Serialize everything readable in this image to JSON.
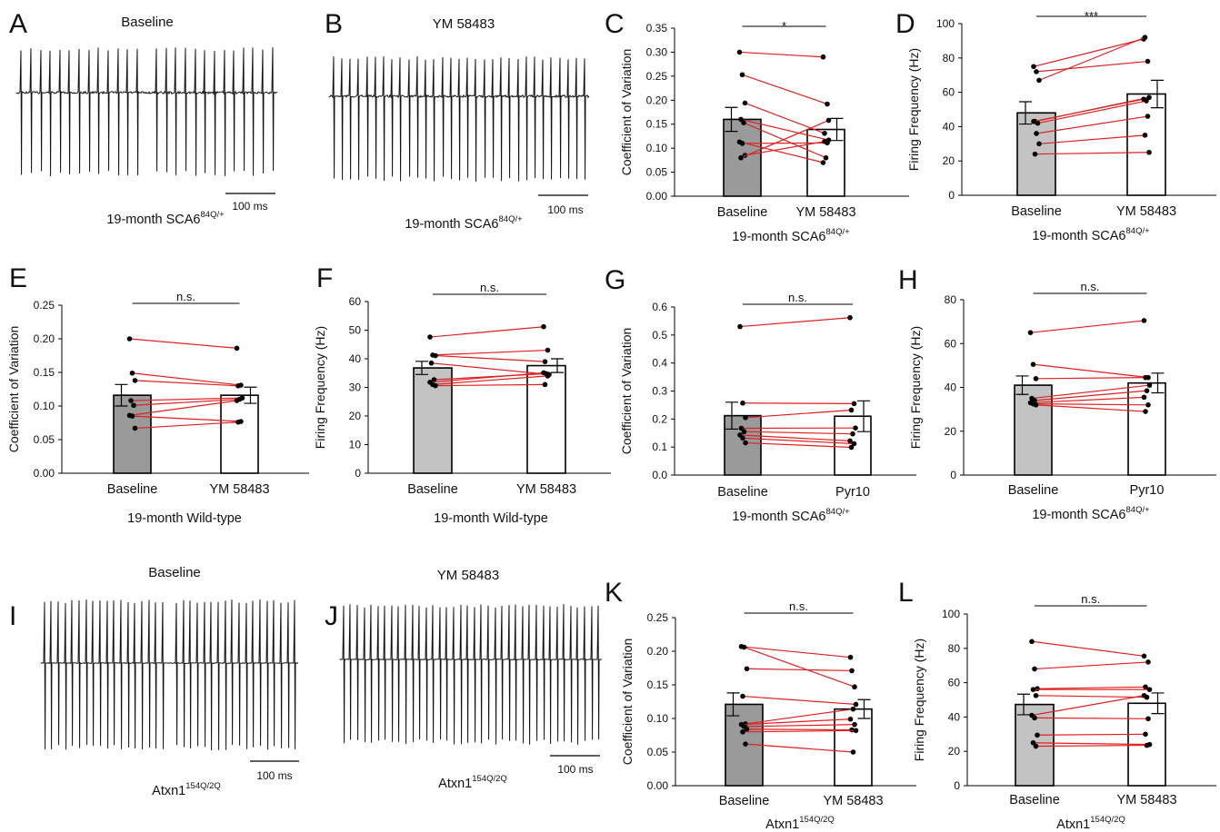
{
  "colors": {
    "trace": "#111111",
    "pair_line": "#e02020",
    "dot": "#000000",
    "bar_dark": "#9a9a9a",
    "bar_light": "#c3c3c3",
    "bar_treated": "#ffffff"
  },
  "traces": [
    {
      "letter": "A",
      "title": "Baseline",
      "scale_label": "100 ms",
      "caption": "19-month SCA6",
      "caption_sup": "84Q/+"
    },
    {
      "letter": "B",
      "title": "YM 58483",
      "scale_label": "100 ms",
      "caption": "19-month SCA6",
      "caption_sup": "84Q/+"
    },
    {
      "letter": "I",
      "title": "Baseline",
      "scale_label": "100 ms",
      "caption": "Atxn1",
      "caption_sup": "154Q/2Q"
    },
    {
      "letter": "J",
      "title": "YM 58483",
      "scale_label": "100 ms",
      "caption": "Atxn1",
      "caption_sup": "154Q/2Q"
    }
  ],
  "chart_data": [
    {
      "letter": "C",
      "type": "bar",
      "categories": [
        "Baseline",
        "YM 58483"
      ],
      "ylabel": "Coefficient of Variation",
      "ylim": [
        0,
        0.35
      ],
      "yticks": [
        "0.00",
        "0.05",
        "0.10",
        "0.15",
        "0.20",
        "0.25",
        "0.30",
        "0.35"
      ],
      "caption": "19-month SCA6",
      "caption_sup": "84Q/+",
      "significance": "*",
      "baseline_shade": "dark",
      "means": [
        0.16,
        0.139
      ],
      "sem": [
        0.025,
        0.023
      ],
      "pairs": [
        [
          0.3,
          0.29
        ],
        [
          0.253,
          0.192
        ],
        [
          0.194,
          0.131
        ],
        [
          0.16,
          0.117
        ],
        [
          0.153,
          0.08
        ],
        [
          0.113,
          0.07
        ],
        [
          0.11,
          0.111
        ],
        [
          0.085,
          0.114
        ],
        [
          0.08,
          0.158
        ]
      ]
    },
    {
      "letter": "D",
      "type": "bar",
      "categories": [
        "Baseline",
        "YM 58483"
      ],
      "ylabel": "Firing Frequency (Hz)",
      "ylim": [
        0,
        100
      ],
      "yticks": [
        "0",
        "20",
        "40",
        "60",
        "80",
        "100"
      ],
      "caption": "19-month SCA6",
      "caption_sup": "84Q/+",
      "significance": "***",
      "baseline_shade": "light",
      "means": [
        48,
        59
      ],
      "sem": [
        6.5,
        8
      ],
      "pairs": [
        [
          75,
          91
        ],
        [
          72,
          78
        ],
        [
          67,
          92
        ],
        [
          43,
          57
        ],
        [
          42,
          55
        ],
        [
          43,
          56
        ],
        [
          36,
          46
        ],
        [
          30,
          35
        ],
        [
          24,
          25
        ]
      ]
    },
    {
      "letter": "E",
      "type": "bar",
      "categories": [
        "Baseline",
        "YM 58483"
      ],
      "ylabel": "Coefficient of Variation",
      "ylim": [
        0,
        0.25
      ],
      "yticks": [
        "0.00",
        "0.05",
        "0.10",
        "0.15",
        "0.20",
        "0.25"
      ],
      "caption": "19-month Wild-type",
      "caption_sup": "",
      "significance": "n.s.",
      "baseline_shade": "dark",
      "means": [
        0.116,
        0.116
      ],
      "sem": [
        0.016,
        0.012
      ],
      "pairs": [
        [
          0.2,
          0.186
        ],
        [
          0.149,
          0.131
        ],
        [
          0.138,
          0.13
        ],
        [
          0.108,
          0.112
        ],
        [
          0.101,
          0.11
        ],
        [
          0.086,
          0.108
        ],
        [
          0.085,
          0.077
        ],
        [
          0.067,
          0.076
        ]
      ]
    },
    {
      "letter": "F",
      "type": "bar",
      "categories": [
        "Baseline",
        "YM 58483"
      ],
      "ylabel": "Firing Frequency (Hz)",
      "ylim": [
        0,
        60
      ],
      "yticks": [
        "0",
        "10",
        "20",
        "30",
        "40",
        "50",
        "60"
      ],
      "caption": "19-month Wild-type",
      "caption_sup": "",
      "significance": "n.s.",
      "baseline_shade": "light",
      "means": [
        36.8,
        37.6
      ],
      "sem": [
        2.3,
        2.4
      ],
      "pairs": [
        [
          47.6,
          51.2
        ],
        [
          41.3,
          43
        ],
        [
          41.1,
          39
        ],
        [
          38.5,
          34.5
        ],
        [
          32.7,
          34.8
        ],
        [
          31.8,
          35.1
        ],
        [
          31,
          34
        ],
        [
          30.6,
          31
        ]
      ]
    },
    {
      "letter": "G",
      "type": "bar",
      "categories": [
        "Baseline",
        "Pyr10"
      ],
      "ylabel": "Coefficient of Variation",
      "ylim": [
        0,
        0.6
      ],
      "yticks": [
        "0.0",
        "0.1",
        "0.2",
        "0.3",
        "0.4",
        "0.5",
        "0.6"
      ],
      "caption": "19-month SCA6",
      "caption_sup": "84Q/+",
      "significance": "n.s.",
      "baseline_shade": "dark",
      "means": [
        0.212,
        0.21
      ],
      "sem": [
        0.048,
        0.055
      ],
      "pairs": [
        [
          0.53,
          0.562
        ],
        [
          0.257,
          0.255
        ],
        [
          0.205,
          0.232
        ],
        [
          0.167,
          0.168
        ],
        [
          0.155,
          0.147
        ],
        [
          0.143,
          0.122
        ],
        [
          0.132,
          0.112
        ],
        [
          0.115,
          0.099
        ]
      ]
    },
    {
      "letter": "H",
      "type": "bar",
      "categories": [
        "Baseline",
        "Pyr10"
      ],
      "ylabel": "Firing Frequency (Hz)",
      "ylim": [
        0,
        80
      ],
      "yticks": [
        "0",
        "20",
        "40",
        "60",
        "80"
      ],
      "caption": "19-month SCA6",
      "caption_sup": "84Q/+",
      "significance": "n.s.",
      "baseline_shade": "light",
      "means": [
        41,
        42
      ],
      "sem": [
        4.2,
        4.5
      ],
      "pairs": [
        [
          65,
          70.5
        ],
        [
          50.5,
          44.5
        ],
        [
          44,
          44.5
        ],
        [
          35,
          41
        ],
        [
          34,
          38.5
        ],
        [
          33,
          35.5
        ],
        [
          32.5,
          32
        ],
        [
          32,
          29
        ]
      ]
    },
    {
      "letter": "K",
      "type": "bar",
      "categories": [
        "Baseline",
        "YM 58483"
      ],
      "ylabel": "Coefficient of Variation",
      "ylim": [
        0,
        0.25
      ],
      "yticks": [
        "0.00",
        "0.05",
        "0.10",
        "0.15",
        "0.20",
        "0.25"
      ],
      "caption": "Atxn1",
      "caption_sup": "154Q/2Q",
      "significance": "n.s.",
      "baseline_shade": "dark",
      "means": [
        0.121,
        0.114
      ],
      "sem": [
        0.017,
        0.014
      ],
      "pairs": [
        [
          0.207,
          0.191
        ],
        [
          0.206,
          0.147
        ],
        [
          0.174,
          0.171
        ],
        [
          0.133,
          0.121
        ],
        [
          0.092,
          0.114
        ],
        [
          0.091,
          0.099
        ],
        [
          0.088,
          0.091
        ],
        [
          0.084,
          0.083
        ],
        [
          0.08,
          0.082
        ],
        [
          0.062,
          0.05
        ]
      ]
    },
    {
      "letter": "L",
      "type": "bar",
      "categories": [
        "Baseline",
        "YM 58483"
      ],
      "ylabel": "Firing Frequency (Hz)",
      "ylim": [
        0,
        100
      ],
      "yticks": [
        "0",
        "20",
        "40",
        "60",
        "80",
        "100"
      ],
      "caption": "Atxn1",
      "caption_sup": "154Q/2Q",
      "significance": "n.s.",
      "baseline_shade": "light",
      "means": [
        47.3,
        48
      ],
      "sem": [
        6,
        6
      ],
      "pairs": [
        [
          84,
          75.5
        ],
        [
          68,
          72
        ],
        [
          56.5,
          57.5
        ],
        [
          56,
          56
        ],
        [
          52.5,
          51.5
        ],
        [
          41,
          52.5
        ],
        [
          39.5,
          39
        ],
        [
          29.5,
          30
        ],
        [
          25,
          24
        ],
        [
          23,
          23.5
        ]
      ]
    }
  ]
}
